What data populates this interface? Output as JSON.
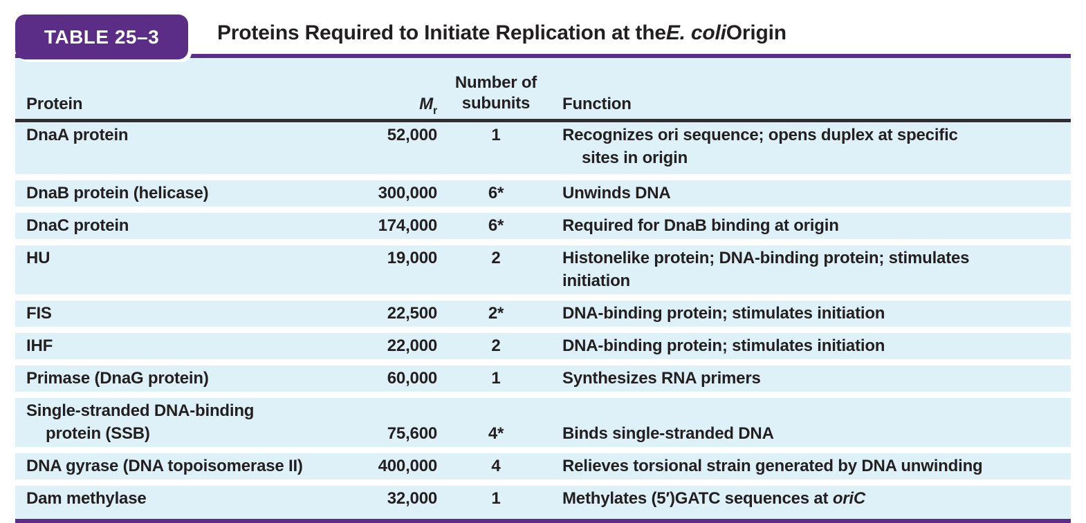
{
  "colors": {
    "purple": "#5b2d87",
    "row_blue": "#def1f8",
    "text": "#231f20",
    "header_rule": "#2e2e33"
  },
  "header": {
    "tag": "TABLE 25–3",
    "title": [
      {
        "t": "Proteins Required to Initiate Replication at the "
      },
      {
        "t": "E. coli",
        "i": true
      },
      {
        "t": " Origin"
      }
    ]
  },
  "columns": {
    "protein": "Protein",
    "mr_symbol": "M",
    "mr_subscript": "r",
    "subunits": [
      "Number of",
      "subunits"
    ],
    "function": "Function"
  },
  "rows": [
    {
      "protein": [
        {
          "segments": [
            {
              "t": "DnaA protein"
            }
          ]
        }
      ],
      "mr": "52,000",
      "subunits": "1",
      "function": [
        {
          "segments": [
            {
              "t": "Recognizes ori sequence; opens duplex at specific"
            }
          ]
        },
        {
          "indent": true,
          "segments": [
            {
              "t": "sites in origin"
            }
          ]
        }
      ]
    },
    {
      "protein": [
        {
          "segments": [
            {
              "t": "DnaB protein (helicase)"
            }
          ]
        }
      ],
      "mr": "300,000",
      "subunits": "6*",
      "function": [
        {
          "segments": [
            {
              "t": "Unwinds DNA"
            }
          ]
        }
      ]
    },
    {
      "protein": [
        {
          "segments": [
            {
              "t": "DnaC protein"
            }
          ]
        }
      ],
      "mr": "174,000",
      "subunits": "6*",
      "function": [
        {
          "segments": [
            {
              "t": "Required for DnaB binding at origin"
            }
          ]
        }
      ]
    },
    {
      "protein": [
        {
          "segments": [
            {
              "t": "HU"
            }
          ]
        }
      ],
      "mr": "19,000",
      "subunits": "2",
      "function": [
        {
          "segments": [
            {
              "t": "Histonelike protein; DNA-binding protein; stimulates"
            }
          ]
        },
        {
          "segments": [
            {
              "t": "initiation"
            }
          ]
        }
      ]
    },
    {
      "protein": [
        {
          "segments": [
            {
              "t": "FIS"
            }
          ]
        }
      ],
      "mr": "22,500",
      "subunits": "2*",
      "function": [
        {
          "segments": [
            {
              "t": "DNA-binding protein; stimulates initiation"
            }
          ]
        }
      ]
    },
    {
      "protein": [
        {
          "segments": [
            {
              "t": "IHF"
            }
          ]
        }
      ],
      "mr": "22,000",
      "subunits": "2",
      "function": [
        {
          "segments": [
            {
              "t": "DNA-binding protein; stimulates initiation"
            }
          ]
        }
      ]
    },
    {
      "protein": [
        {
          "segments": [
            {
              "t": "Primase (DnaG protein)"
            }
          ]
        }
      ],
      "mr": "60,000",
      "subunits": "1",
      "function": [
        {
          "segments": [
            {
              "t": "Synthesizes RNA primers"
            }
          ]
        }
      ]
    },
    {
      "variant": "bottom",
      "protein": [
        {
          "segments": [
            {
              "t": "Single-stranded DNA-binding"
            }
          ]
        },
        {
          "indent": true,
          "segments": [
            {
              "t": "protein (SSB)"
            }
          ]
        }
      ],
      "mr": "75,600",
      "subunits": "4*",
      "function": [
        {
          "segments": [
            {
              "t": "Binds single-stranded DNA"
            }
          ]
        }
      ]
    },
    {
      "protein": [
        {
          "segments": [
            {
              "t": "DNA gyrase (DNA topoisomerase II)"
            }
          ]
        }
      ],
      "mr": "400,000",
      "subunits": "4",
      "function": [
        {
          "segments": [
            {
              "t": "Relieves torsional strain generated by DNA unwinding"
            }
          ]
        }
      ]
    },
    {
      "protein": [
        {
          "segments": [
            {
              "t": "Dam methylase"
            }
          ]
        }
      ],
      "mr": "32,000",
      "subunits": "1",
      "function": [
        {
          "segments": [
            {
              "t": "Methylates (5′)GATC sequences at "
            },
            {
              "t": "oriC",
              "i": true
            }
          ]
        }
      ]
    }
  ]
}
